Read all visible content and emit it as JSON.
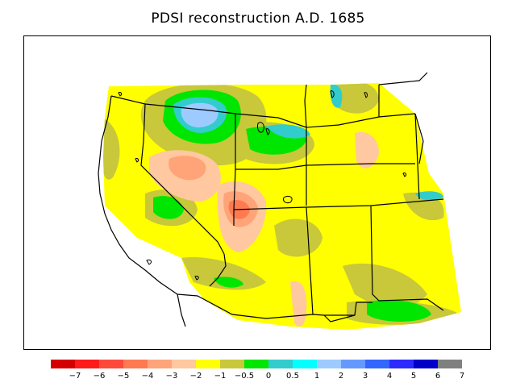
{
  "title": "PDSI reconstruction A.D. 1685",
  "legend": {
    "colors": [
      "#d40000",
      "#ff1a1a",
      "#ff4a3a",
      "#ff7a50",
      "#ffa478",
      "#ffc8a0",
      "#ffff00",
      "#c8c83a",
      "#00e600",
      "#33cccc",
      "#00ffff",
      "#9ecbff",
      "#6699ff",
      "#3366ff",
      "#2b2bff",
      "#0000c8",
      "#808080"
    ],
    "labels": [
      "−7",
      "−6",
      "−5",
      "−4",
      "−3",
      "−2",
      "−1",
      "−0.5",
      "0",
      "0.5",
      "1",
      "2",
      "3",
      "4",
      "5",
      "6",
      "7"
    ]
  }
}
